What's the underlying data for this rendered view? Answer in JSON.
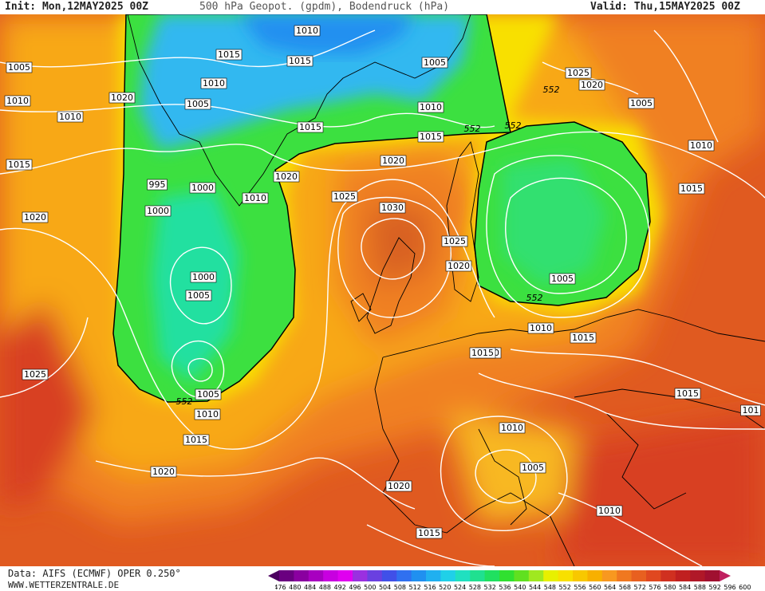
{
  "header": {
    "init": "Init: Mon,12MAY2025 00Z",
    "title": "500 hPa Geopot. (gpdm), Bodendruck (hPa)",
    "valid": "Valid: Thu,15MAY2025 00Z"
  },
  "footer": {
    "source": "Data: AIFS (ECMWF) OPER 0.250°",
    "url": "WWW.WETTERZENTRALE.DE"
  },
  "colorbar": {
    "values": [
      "476",
      "480",
      "484",
      "488",
      "492",
      "496",
      "500",
      "504",
      "508",
      "512",
      "516",
      "520",
      "524",
      "528",
      "532",
      "536",
      "540",
      "544",
      "548",
      "552",
      "556",
      "560",
      "564",
      "568",
      "572",
      "576",
      "580",
      "584",
      "588",
      "592",
      "596",
      "600"
    ],
    "colors": [
      "#4b0060",
      "#6a0080",
      "#8a00a0",
      "#a800c0",
      "#c800e0",
      "#e000f0",
      "#9a30e0",
      "#6a40e0",
      "#4050e8",
      "#3070f0",
      "#2090f0",
      "#20b0f0",
      "#20d0e8",
      "#20e0c0",
      "#20e090",
      "#20e060",
      "#30e030",
      "#60e020",
      "#a0e820",
      "#e8f000",
      "#f8e000",
      "#f8c800",
      "#f8b000",
      "#f89820",
      "#f07820",
      "#e86020",
      "#e04820",
      "#d03020",
      "#c02020",
      "#b01828",
      "#a01030",
      "#c02060"
    ]
  },
  "isobar_labels": [
    {
      "text": "1010"
    },
    {
      "text": "1015"
    },
    {
      "text": "1015"
    },
    {
      "text": "1005"
    },
    {
      "text": "1010"
    },
    {
      "text": "1020"
    },
    {
      "text": "1005"
    },
    {
      "text": "1010"
    },
    {
      "text": "1010"
    },
    {
      "text": "1015"
    },
    {
      "text": "1020"
    },
    {
      "text": "1015"
    },
    {
      "text": "1005"
    },
    {
      "text": "1010"
    },
    {
      "text": "1015"
    },
    {
      "text": "1025"
    },
    {
      "text": "1020"
    },
    {
      "text": "1005"
    },
    {
      "text": "1010"
    },
    {
      "text": "1015"
    },
    {
      "text": "995"
    },
    {
      "text": "1000"
    },
    {
      "text": "1000"
    },
    {
      "text": "1010"
    },
    {
      "text": "1020"
    },
    {
      "text": "1020"
    },
    {
      "text": "1025"
    },
    {
      "text": "1030"
    },
    {
      "text": "1025"
    },
    {
      "text": "1020"
    },
    {
      "text": "1000"
    },
    {
      "text": "1005"
    },
    {
      "text": "1005"
    },
    {
      "text": "1010"
    },
    {
      "text": "1015"
    },
    {
      "text": "1020"
    },
    {
      "text": "1025"
    },
    {
      "text": "1005"
    },
    {
      "text": "1010"
    },
    {
      "text": "1015"
    },
    {
      "text": "1015"
    },
    {
      "text": "1010"
    },
    {
      "text": "1005"
    },
    {
      "text": "1020"
    },
    {
      "text": "1015"
    },
    {
      "text": "1010"
    },
    {
      "text": "1015"
    },
    {
      "text": "101"
    },
    {
      "text": "1020"
    }
  ],
  "gh_labels": [
    {
      "text": "552"
    },
    {
      "text": "552"
    },
    {
      "text": "552"
    },
    {
      "text": "552"
    },
    {
      "text": "552"
    }
  ]
}
